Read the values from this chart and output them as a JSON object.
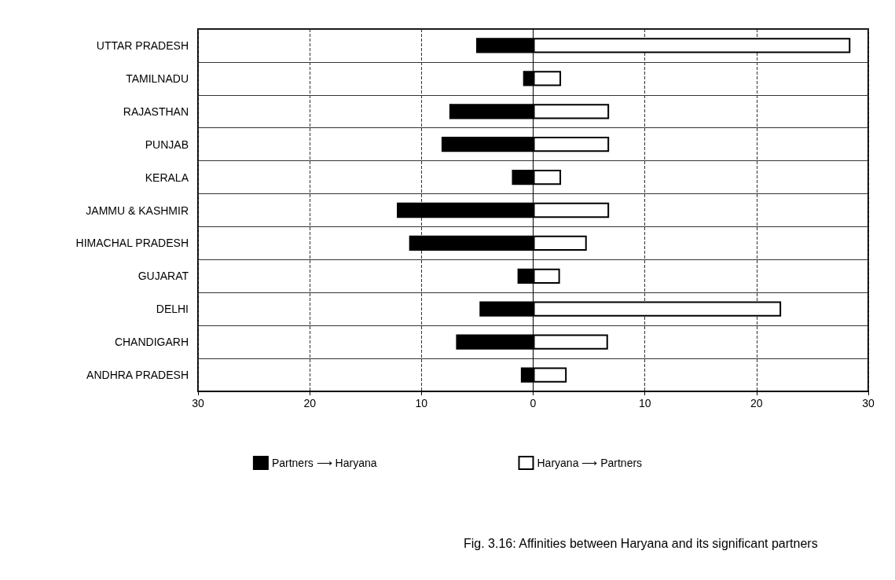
{
  "chart_data": {
    "type": "bar",
    "orientation": "horizontal",
    "stacked": true,
    "title": "Fig. 3.16: Affinities between Haryana and its significant partners",
    "categories": [
      "UTTAR PRADESH",
      "TAMILNADU",
      "RAJASTHAN",
      "PUNJAB",
      "KERALA",
      "JAMMU & KASHMIR",
      "HIMACHAL PRADESH",
      "GUJARAT",
      "DELHI",
      "CHANDIGARH",
      "ANDHRA PRADESH"
    ],
    "series": [
      {
        "name": "Partners ⟶ Haryana",
        "color": "#000000",
        "values": [
          -5.1,
          -0.9,
          -7.5,
          -8.2,
          -1.9,
          -12.2,
          -11.1,
          -1.4,
          -4.8,
          -6.9,
          -1.1
        ]
      },
      {
        "name": "Haryana ⟶ Partners",
        "color": "#ffffff",
        "values": [
          28.4,
          2.5,
          6.8,
          6.8,
          2.5,
          6.8,
          4.8,
          2.4,
          22.2,
          6.7,
          3.0
        ]
      }
    ],
    "xlim": [
      -30,
      30
    ],
    "xticks": [
      {
        "value": -30,
        "label": "30"
      },
      {
        "value": -20,
        "label": "20"
      },
      {
        "value": -10,
        "label": "10"
      },
      0,
      10,
      20,
      30
    ],
    "grid": true,
    "legend": "bottom"
  }
}
